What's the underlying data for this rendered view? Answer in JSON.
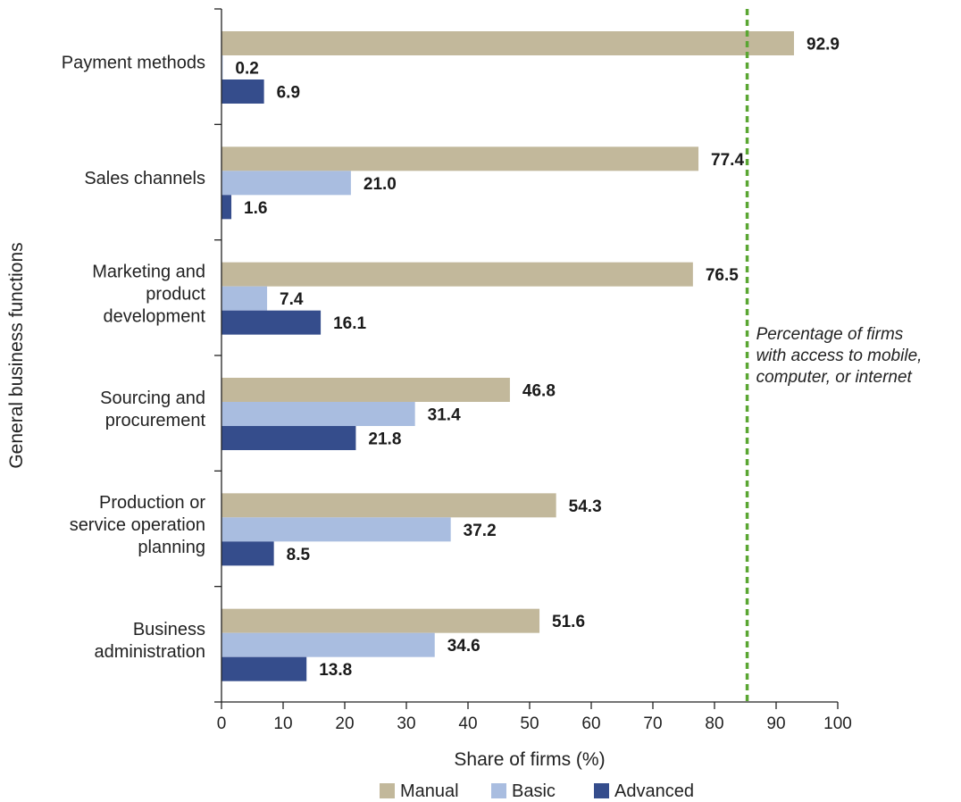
{
  "chart_data": {
    "type": "bar",
    "orientation": "horizontal",
    "xlabel": "Share of firms (%)",
    "ylabel": "General business functions",
    "xlim": [
      0,
      100
    ],
    "xticks": [
      0,
      10,
      20,
      30,
      40,
      50,
      60,
      70,
      80,
      90,
      100
    ],
    "categories": [
      [
        "Payment methods"
      ],
      [
        "Sales channels"
      ],
      [
        "Marketing and",
        "product",
        "development"
      ],
      [
        "Sourcing and",
        "procurement"
      ],
      [
        "Production or",
        "service operation",
        "planning"
      ],
      [
        "Business",
        "administration"
      ]
    ],
    "series": [
      {
        "name": "Manual",
        "color": "#c2b89b",
        "values": [
          92.9,
          77.4,
          76.5,
          46.8,
          54.3,
          51.6
        ]
      },
      {
        "name": "Basic",
        "color": "#a9bde0",
        "values": [
          0.2,
          21.0,
          7.4,
          31.4,
          37.2,
          34.6
        ]
      },
      {
        "name": "Advanced",
        "color": "#354d8c",
        "values": [
          6.9,
          1.6,
          16.1,
          21.8,
          8.5,
          13.8
        ]
      }
    ],
    "reference_line": {
      "value": 85.3,
      "color": "#5aa632",
      "style": "dashed",
      "annotation": [
        "Percentage of firms",
        "with access to mobile,",
        "computer, or internet"
      ]
    },
    "legend_position": "bottom-center",
    "grid": false
  }
}
